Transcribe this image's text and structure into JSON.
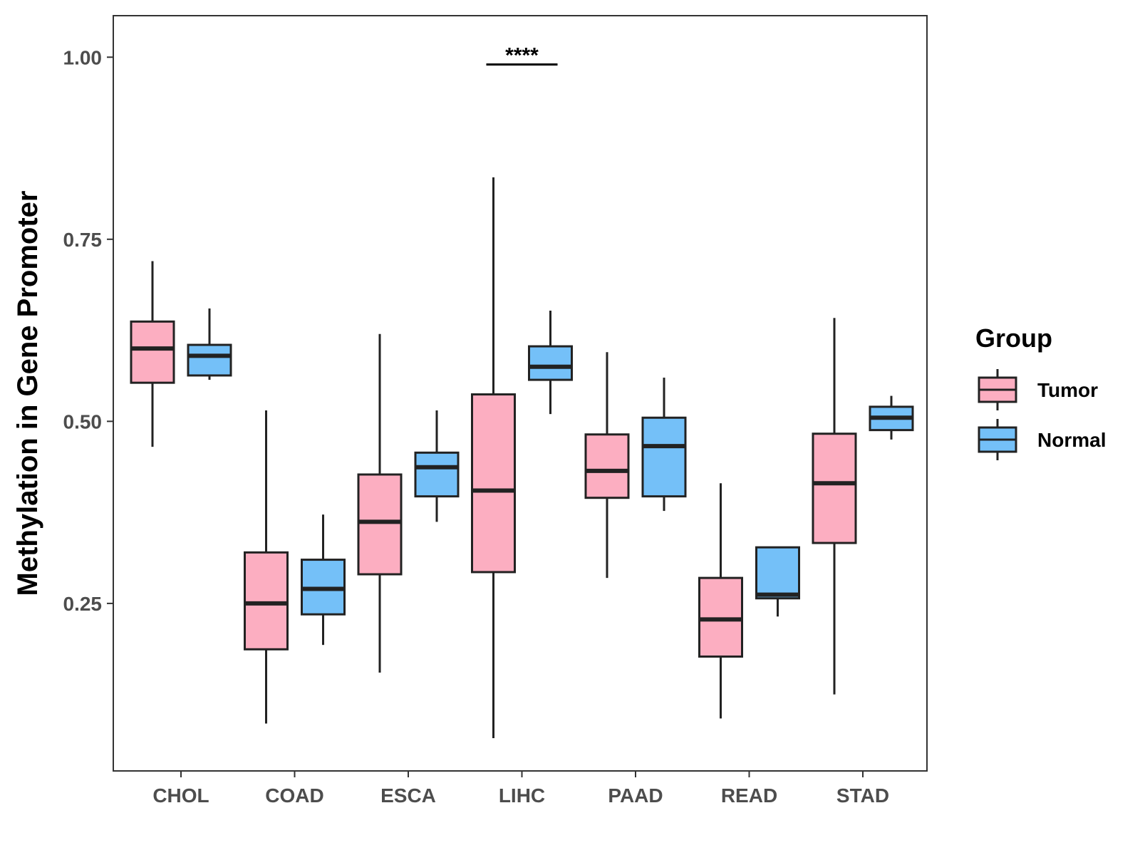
{
  "chart_data": {
    "type": "boxplot",
    "title": "",
    "xlabel": "",
    "ylabel": "Methylation in Gene Promoter",
    "ylim": [
      0.02,
      1.057
    ],
    "yticks": [
      0.25,
      0.5,
      0.75,
      1.0
    ],
    "ytick_labels": [
      "0.25",
      "0.50",
      "0.75",
      "1.00"
    ],
    "grid": false,
    "categories": [
      "CHOL",
      "COAD",
      "ESCA",
      "LIHC",
      "PAAD",
      "READ",
      "STAD"
    ],
    "legend": {
      "title": "Group",
      "position": "right",
      "entries": [
        {
          "name": "Tumor",
          "color": "#FCAEC1"
        },
        {
          "name": "Normal",
          "color": "#74C0F8"
        }
      ]
    },
    "series": [
      {
        "name": "Tumor",
        "color": "#FCAEC1",
        "boxes": [
          {
            "category": "CHOL",
            "min": 0.465,
            "q1": 0.553,
            "median": 0.6,
            "q3": 0.637,
            "max": 0.72
          },
          {
            "category": "COAD",
            "min": 0.085,
            "q1": 0.187,
            "median": 0.25,
            "q3": 0.32,
            "max": 0.515
          },
          {
            "category": "ESCA",
            "min": 0.155,
            "q1": 0.29,
            "median": 0.362,
            "q3": 0.427,
            "max": 0.62
          },
          {
            "category": "LIHC",
            "min": 0.065,
            "q1": 0.293,
            "median": 0.405,
            "q3": 0.537,
            "max": 0.835
          },
          {
            "category": "PAAD",
            "min": 0.285,
            "q1": 0.395,
            "median": 0.432,
            "q3": 0.482,
            "max": 0.595
          },
          {
            "category": "READ",
            "min": 0.092,
            "q1": 0.177,
            "median": 0.228,
            "q3": 0.285,
            "max": 0.415
          },
          {
            "category": "STAD",
            "min": 0.125,
            "q1": 0.333,
            "median": 0.415,
            "q3": 0.483,
            "max": 0.642
          }
        ]
      },
      {
        "name": "Normal",
        "color": "#74C0F8",
        "boxes": [
          {
            "category": "CHOL",
            "min": 0.557,
            "q1": 0.563,
            "median": 0.59,
            "q3": 0.605,
            "max": 0.655
          },
          {
            "category": "COAD",
            "min": 0.193,
            "q1": 0.235,
            "median": 0.27,
            "q3": 0.31,
            "max": 0.372
          },
          {
            "category": "ESCA",
            "min": 0.362,
            "q1": 0.397,
            "median": 0.437,
            "q3": 0.457,
            "max": 0.515
          },
          {
            "category": "LIHC",
            "min": 0.51,
            "q1": 0.557,
            "median": 0.575,
            "q3": 0.603,
            "max": 0.652
          },
          {
            "category": "PAAD",
            "min": 0.377,
            "q1": 0.397,
            "median": 0.466,
            "q3": 0.505,
            "max": 0.56
          },
          {
            "category": "READ",
            "min": 0.232,
            "q1": 0.257,
            "median": 0.262,
            "q3": 0.327,
            "max": 0.327
          },
          {
            "category": "STAD",
            "min": 0.475,
            "q1": 0.488,
            "median": 0.505,
            "q3": 0.52,
            "max": 0.535
          }
        ]
      }
    ],
    "annotations": [
      {
        "text": "****",
        "category": "LIHC",
        "y": 0.99
      }
    ]
  }
}
